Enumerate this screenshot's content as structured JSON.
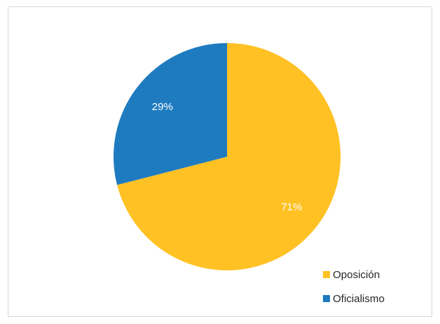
{
  "chart_data": {
    "type": "pie",
    "slices": [
      {
        "label": "Oposición",
        "value": 71,
        "display": "71%",
        "color": "#FFC124"
      },
      {
        "label": "Oficialismo",
        "value": 29,
        "display": "29%",
        "color": "#1F7BC0"
      }
    ],
    "start_angle_deg": 0,
    "direction": "clockwise",
    "legend_position": "bottom-right",
    "label_color": "#ffffff"
  }
}
